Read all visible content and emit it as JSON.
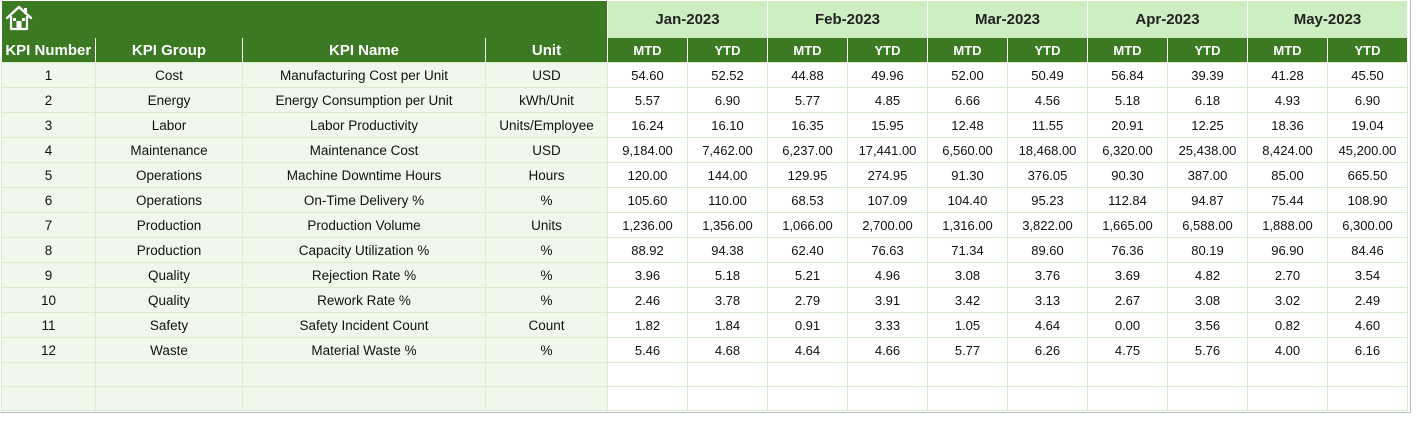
{
  "columns": {
    "kpi_number": "KPI Number",
    "kpi_group": "KPI Group",
    "kpi_name": "KPI Name",
    "unit": "Unit"
  },
  "months": [
    "Jan-2023",
    "Feb-2023",
    "Mar-2023",
    "Apr-2023",
    "May-2023"
  ],
  "sub_headers": {
    "mtd": "MTD",
    "ytd": "YTD"
  },
  "icons": {
    "home": "home-icon"
  },
  "colors": {
    "header_green": "#3b7a23",
    "month_green": "#cdeec0",
    "row_tint": "#f0f8eb",
    "grid": "#d7ecc9"
  },
  "rows": [
    {
      "num": "1",
      "group": "Cost",
      "name": "Manufacturing Cost per Unit",
      "unit": "USD",
      "values": [
        "54.60",
        "52.52",
        "44.88",
        "49.96",
        "52.00",
        "50.49",
        "56.84",
        "39.39",
        "41.28",
        "45.50"
      ]
    },
    {
      "num": "2",
      "group": "Energy",
      "name": "Energy Consumption per Unit",
      "unit": "kWh/Unit",
      "values": [
        "5.57",
        "6.90",
        "5.77",
        "4.85",
        "6.66",
        "4.56",
        "5.18",
        "6.18",
        "4.93",
        "6.90"
      ]
    },
    {
      "num": "3",
      "group": "Labor",
      "name": "Labor Productivity",
      "unit": "Units/Employee",
      "values": [
        "16.24",
        "16.10",
        "16.35",
        "15.95",
        "12.48",
        "11.55",
        "20.91",
        "12.25",
        "18.36",
        "19.04"
      ]
    },
    {
      "num": "4",
      "group": "Maintenance",
      "name": "Maintenance Cost",
      "unit": "USD",
      "values": [
        "9,184.00",
        "7,462.00",
        "6,237.00",
        "17,441.00",
        "6,560.00",
        "18,468.00",
        "6,320.00",
        "25,438.00",
        "8,424.00",
        "45,200.00"
      ]
    },
    {
      "num": "5",
      "group": "Operations",
      "name": "Machine Downtime Hours",
      "unit": "Hours",
      "values": [
        "120.00",
        "144.00",
        "129.95",
        "274.95",
        "91.30",
        "376.05",
        "90.30",
        "387.00",
        "85.00",
        "665.50"
      ]
    },
    {
      "num": "6",
      "group": "Operations",
      "name": "On-Time Delivery %",
      "unit": "%",
      "values": [
        "105.60",
        "110.00",
        "68.53",
        "107.09",
        "104.40",
        "95.23",
        "112.84",
        "94.87",
        "75.44",
        "108.90"
      ]
    },
    {
      "num": "7",
      "group": "Production",
      "name": "Production Volume",
      "unit": "Units",
      "values": [
        "1,236.00",
        "1,356.00",
        "1,066.00",
        "2,700.00",
        "1,316.00",
        "3,822.00",
        "1,665.00",
        "6,588.00",
        "1,888.00",
        "6,300.00"
      ]
    },
    {
      "num": "8",
      "group": "Production",
      "name": "Capacity Utilization %",
      "unit": "%",
      "values": [
        "88.92",
        "94.38",
        "62.40",
        "76.63",
        "71.34",
        "89.60",
        "76.36",
        "80.19",
        "96.90",
        "84.46"
      ]
    },
    {
      "num": "9",
      "group": "Quality",
      "name": "Rejection Rate %",
      "unit": "%",
      "values": [
        "3.96",
        "5.18",
        "5.21",
        "4.96",
        "3.08",
        "3.76",
        "3.69",
        "4.82",
        "2.70",
        "3.54"
      ]
    },
    {
      "num": "10",
      "group": "Quality",
      "name": "Rework Rate %",
      "unit": "%",
      "values": [
        "2.46",
        "3.78",
        "2.79",
        "3.91",
        "3.42",
        "3.13",
        "2.67",
        "3.08",
        "3.02",
        "2.49"
      ]
    },
    {
      "num": "11",
      "group": "Safety",
      "name": "Safety Incident Count",
      "unit": "Count",
      "values": [
        "1.82",
        "1.84",
        "0.91",
        "3.33",
        "1.05",
        "4.64",
        "0.00",
        "3.56",
        "0.82",
        "4.60"
      ]
    },
    {
      "num": "12",
      "group": "Waste",
      "name": "Material Waste %",
      "unit": "%",
      "values": [
        "5.46",
        "4.68",
        "4.64",
        "4.66",
        "5.77",
        "6.26",
        "4.75",
        "5.76",
        "4.00",
        "6.16"
      ]
    }
  ]
}
